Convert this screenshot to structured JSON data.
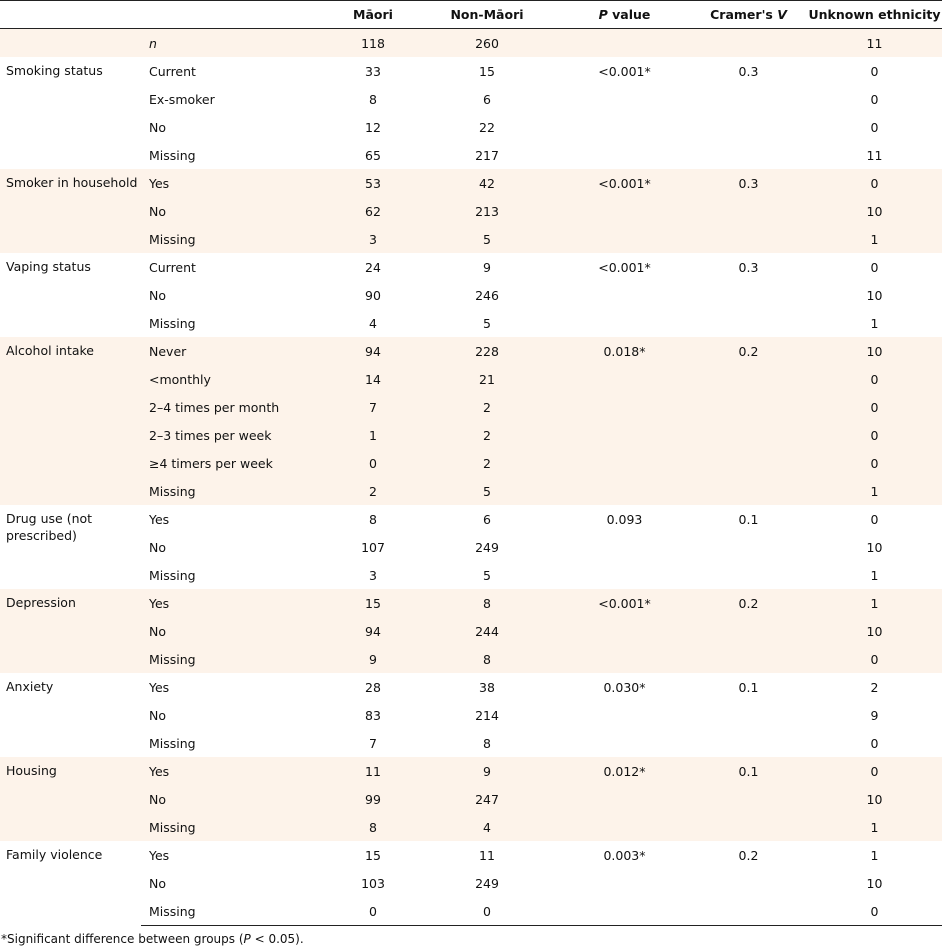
{
  "headers": {
    "variable": "",
    "level": "",
    "maori": "Māori",
    "non_maori": "Non-Māori",
    "p_italic": "P",
    "p_rest": " value",
    "v_prefix": "Cramer's ",
    "v_italic": "V",
    "unknown": "Unknown ethnicity"
  },
  "n_row": {
    "level": "n",
    "maori": "118",
    "non_maori": "260",
    "p": "",
    "v": "",
    "unknown": "11"
  },
  "groups": [
    {
      "label": "Smoking status",
      "rows": [
        {
          "level": "Current",
          "maori": "33",
          "non_maori": "15",
          "p": "<0.001*",
          "v": "0.3",
          "unknown": "0"
        },
        {
          "level": "Ex-smoker",
          "maori": "8",
          "non_maori": "6",
          "p": "",
          "v": "",
          "unknown": "0"
        },
        {
          "level": "No",
          "maori": "12",
          "non_maori": "22",
          "p": "",
          "v": "",
          "unknown": "0"
        },
        {
          "level": "Missing",
          "maori": "65",
          "non_maori": "217",
          "p": "",
          "v": "",
          "unknown": "11"
        }
      ]
    },
    {
      "label": "Smoker in household",
      "rows": [
        {
          "level": "Yes",
          "maori": "53",
          "non_maori": "42",
          "p": "<0.001*",
          "v": "0.3",
          "unknown": "0"
        },
        {
          "level": "No",
          "maori": "62",
          "non_maori": "213",
          "p": "",
          "v": "",
          "unknown": "10"
        },
        {
          "level": "Missing",
          "maori": "3",
          "non_maori": "5",
          "p": "",
          "v": "",
          "unknown": "1"
        }
      ]
    },
    {
      "label": "Vaping status",
      "rows": [
        {
          "level": "Current",
          "maori": "24",
          "non_maori": "9",
          "p": "<0.001*",
          "v": "0.3",
          "unknown": "0"
        },
        {
          "level": "No",
          "maori": "90",
          "non_maori": "246",
          "p": "",
          "v": "",
          "unknown": "10"
        },
        {
          "level": "Missing",
          "maori": "4",
          "non_maori": "5",
          "p": "",
          "v": "",
          "unknown": "1"
        }
      ]
    },
    {
      "label": "Alcohol intake",
      "rows": [
        {
          "level": "Never",
          "maori": "94",
          "non_maori": "228",
          "p": "0.018*",
          "v": "0.2",
          "unknown": "10"
        },
        {
          "level": "<monthly",
          "maori": "14",
          "non_maori": "21",
          "p": "",
          "v": "",
          "unknown": "0"
        },
        {
          "level": "2–4 times per month",
          "maori": "7",
          "non_maori": "2",
          "p": "",
          "v": "",
          "unknown": "0"
        },
        {
          "level": "2–3 times per week",
          "maori": "1",
          "non_maori": "2",
          "p": "",
          "v": "",
          "unknown": "0"
        },
        {
          "level": "≥4 timers per week",
          "maori": "0",
          "non_maori": "2",
          "p": "",
          "v": "",
          "unknown": "0"
        },
        {
          "level": "Missing",
          "maori": "2",
          "non_maori": "5",
          "p": "",
          "v": "",
          "unknown": "1"
        }
      ]
    },
    {
      "label": "Drug use (not prescribed)",
      "rows": [
        {
          "level": "Yes",
          "maori": "8",
          "non_maori": "6",
          "p": "0.093",
          "v": "0.1",
          "unknown": "0"
        },
        {
          "level": "No",
          "maori": "107",
          "non_maori": "249",
          "p": "",
          "v": "",
          "unknown": "10"
        },
        {
          "level": "Missing",
          "maori": "3",
          "non_maori": "5",
          "p": "",
          "v": "",
          "unknown": "1"
        }
      ]
    },
    {
      "label": "Depression",
      "rows": [
        {
          "level": "Yes",
          "maori": "15",
          "non_maori": "8",
          "p": "<0.001*",
          "v": "0.2",
          "unknown": "1"
        },
        {
          "level": "No",
          "maori": "94",
          "non_maori": "244",
          "p": "",
          "v": "",
          "unknown": "10"
        },
        {
          "level": "Missing",
          "maori": "9",
          "non_maori": "8",
          "p": "",
          "v": "",
          "unknown": "0"
        }
      ]
    },
    {
      "label": "Anxiety",
      "rows": [
        {
          "level": "Yes",
          "maori": "28",
          "non_maori": "38",
          "p": "0.030*",
          "v": "0.1",
          "unknown": "2"
        },
        {
          "level": "No",
          "maori": "83",
          "non_maori": "214",
          "p": "",
          "v": "",
          "unknown": "9"
        },
        {
          "level": "Missing",
          "maori": "7",
          "non_maori": "8",
          "p": "",
          "v": "",
          "unknown": "0"
        }
      ]
    },
    {
      "label": "Housing",
      "rows": [
        {
          "level": "Yes",
          "maori": "11",
          "non_maori": "9",
          "p": "0.012*",
          "v": "0.1",
          "unknown": "0"
        },
        {
          "level": "No",
          "maori": "99",
          "non_maori": "247",
          "p": "",
          "v": "",
          "unknown": "10"
        },
        {
          "level": "Missing",
          "maori": "8",
          "non_maori": "4",
          "p": "",
          "v": "",
          "unknown": "1"
        }
      ]
    },
    {
      "label": "Family violence",
      "rows": [
        {
          "level": "Yes",
          "maori": "15",
          "non_maori": "11",
          "p": "0.003*",
          "v": "0.2",
          "unknown": "1"
        },
        {
          "level": "No",
          "maori": "103",
          "non_maori": "249",
          "p": "",
          "v": "",
          "unknown": "10"
        },
        {
          "level": "Missing",
          "maori": "0",
          "non_maori": "0",
          "p": "",
          "v": "",
          "unknown": "0"
        }
      ]
    }
  ],
  "footnote": {
    "pre": "*Significant difference between groups (",
    "p_italic": "P",
    "post": " < 0.05)."
  }
}
